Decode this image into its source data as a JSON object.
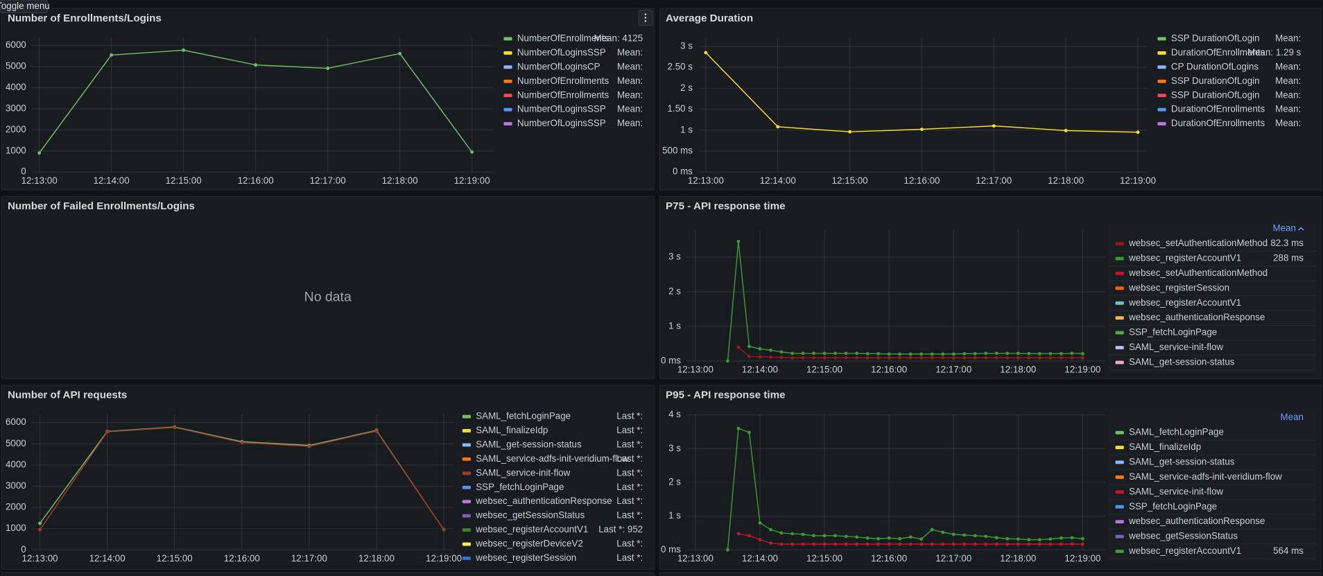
{
  "toggle_menu": "Toggle menu",
  "panels": [
    {
      "title": "Number of Enrollments/Logins",
      "chart": {
        "type": "line",
        "x": [
          "12:13:00",
          "12:14:00",
          "12:15:00",
          "12:16:00",
          "12:17:00",
          "12:18:00",
          "12:19:00"
        ],
        "xticks": [
          "12:13:00",
          "12:14:00",
          "12:15:00",
          "12:16:00",
          "12:17:00",
          "12:18:00",
          "12:19:00"
        ],
        "xlim": [
          "12:12:54",
          "12:19:18"
        ],
        "ylim": [
          0,
          6400
        ],
        "yticks": [
          0,
          1000,
          2000,
          3000,
          4000,
          5000,
          6000
        ],
        "grid": true,
        "legend": [
          {
            "name": "NumberOfEnrollments",
            "color": "#73bf69",
            "stat": "Mean: 4125",
            "values": [
              900,
              5550,
              5780,
              5080,
              4920,
              5620,
              950
            ]
          },
          {
            "name": "NumberOfLoginsSSP",
            "color": "#fade2a",
            "stat": "Mean:"
          },
          {
            "name": "NumberOfLoginsCP",
            "color": "#8ab8ff",
            "stat": "Mean:"
          },
          {
            "name": "NumberOfEnrollments",
            "color": "#ff780a",
            "stat": "Mean:"
          },
          {
            "name": "NumberOfEnrollments",
            "color": "#f2495c",
            "stat": "Mean:"
          },
          {
            "name": "NumberOfLoginsSSP",
            "color": "#5794f2",
            "stat": "Mean:"
          },
          {
            "name": "NumberOfLoginsSSP",
            "color": "#b877d9",
            "stat": "Mean:"
          }
        ]
      }
    },
    {
      "title": "Average Duration",
      "chart": {
        "type": "line",
        "x": [
          "12:13:00",
          "12:14:00",
          "12:15:00",
          "12:16:00",
          "12:17:00",
          "12:18:00",
          "12:19:00"
        ],
        "xticks": [
          "12:13:00",
          "12:14:00",
          "12:15:00",
          "12:16:00",
          "12:17:00",
          "12:18:00",
          "12:19:00"
        ],
        "xlim": [
          "12:12:54",
          "12:19:08"
        ],
        "ylim": [
          0,
          3.2
        ],
        "yticks": [
          {
            "value": 0,
            "label": "0 ms"
          },
          {
            "value": 0.5,
            "label": "500 ms"
          },
          {
            "value": 1,
            "label": "1 s"
          },
          {
            "value": 1.5,
            "label": "1.50 s"
          },
          {
            "value": 2,
            "label": "2 s"
          },
          {
            "value": 2.5,
            "label": "2.50 s"
          },
          {
            "value": 3,
            "label": "3 s"
          }
        ],
        "grid": true,
        "legend": [
          {
            "name": "SSP DurationOfLogin",
            "color": "#73bf69",
            "stat": "Mean:"
          },
          {
            "name": "DurationOfEnrollments",
            "color": "#fade2a",
            "stat": "Mean: 1.29 s",
            "values": [
              2.85,
              1.08,
              0.96,
              1.02,
              1.1,
              0.99,
              0.95
            ]
          },
          {
            "name": "CP DurationOfLogins",
            "color": "#8ab8ff",
            "stat": "Mean:"
          },
          {
            "name": "SSP DurationOfLogin",
            "color": "#ff780a",
            "stat": "Mean:"
          },
          {
            "name": "SSP DurationOfLogin",
            "color": "#f2495c",
            "stat": "Mean:"
          },
          {
            "name": "DurationOfEnrollments",
            "color": "#5794f2",
            "stat": "Mean:"
          },
          {
            "name": "DurationOfEnrollments",
            "color": "#b877d9",
            "stat": "Mean:"
          }
        ]
      }
    },
    {
      "title": "Number of Failed Enrollments/Logins",
      "message": "No data"
    },
    {
      "title": "P75 - API response time",
      "chart": {
        "type": "line",
        "x": [
          "12:13:30",
          "12:13:40",
          "12:13:50",
          "12:14:00",
          "12:14:10",
          "12:14:20",
          "12:14:30",
          "12:14:40",
          "12:14:50",
          "12:15:00",
          "12:15:10",
          "12:15:20",
          "12:15:30",
          "12:15:40",
          "12:15:50",
          "12:16:00",
          "12:16:10",
          "12:16:20",
          "12:16:30",
          "12:16:40",
          "12:16:50",
          "12:17:00",
          "12:17:10",
          "12:17:20",
          "12:17:30",
          "12:17:40",
          "12:17:50",
          "12:18:00",
          "12:18:10",
          "12:18:20",
          "12:18:30",
          "12:18:40",
          "12:18:50",
          "12:19:00"
        ],
        "xticks": [
          "12:13:00",
          "12:14:00",
          "12:15:00",
          "12:16:00",
          "12:17:00",
          "12:18:00",
          "12:19:00"
        ],
        "xlim": [
          "12:12:52",
          "12:19:21"
        ],
        "ylim": [
          0,
          3.8
        ],
        "yticks": [
          {
            "value": 0,
            "label": "0 ms"
          },
          {
            "value": 1,
            "label": "1 s"
          },
          {
            "value": 2,
            "label": "2 s"
          },
          {
            "value": 3,
            "label": "3 s"
          }
        ],
        "grid": true,
        "legend_header": "Mean",
        "legend": [
          {
            "name": "websec_setAuthenticationMethod",
            "color": "#9a1a1a",
            "stat": "82.3 ms",
            "values": [
              null,
              0.4,
              0.13,
              0.12,
              0.11,
              0.1,
              0.09,
              0.09,
              0.09,
              0.09,
              0.09,
              0.09,
              0.09,
              0.09,
              0.09,
              0.09,
              0.09,
              0.09,
              0.09,
              0.09,
              0.09,
              0.09,
              0.09,
              0.09,
              0.09,
              0.09,
              0.09,
              0.09,
              0.09,
              0.09,
              0.09,
              0.09,
              0.09,
              0.09
            ]
          },
          {
            "name": "websec_registerAccountV1",
            "color": "#3d9a35",
            "stat": "288 ms",
            "values": [
              0,
              3.45,
              0.42,
              0.35,
              0.31,
              0.26,
              0.22,
              0.22,
              0.22,
              0.22,
              0.22,
              0.22,
              0.22,
              0.21,
              0.21,
              0.2,
              0.2,
              0.2,
              0.2,
              0.2,
              0.2,
              0.2,
              0.21,
              0.21,
              0.22,
              0.22,
              0.22,
              0.22,
              0.21,
              0.21,
              0.21,
              0.21,
              0.22,
              0.21
            ]
          },
          {
            "name": "websec_setAuthenticationMethod",
            "color": "#c4162a"
          },
          {
            "name": "websec_registerSession",
            "color": "#fa6400"
          },
          {
            "name": "websec_registerAccountV1",
            "color": "#6cc4c4"
          },
          {
            "name": "websec_authenticationResponse",
            "color": "#ffb357"
          },
          {
            "name": "SSP_fetchLoginPage",
            "color": "#56a64b"
          },
          {
            "name": "SAML_service-init-flow",
            "color": "#c0b9f0"
          },
          {
            "name": "SAML_get-session-status",
            "color": "#f5a8d0"
          }
        ]
      }
    },
    {
      "title": "Number of API requests",
      "chart": {
        "type": "line",
        "x": [
          "12:13:00",
          "12:14:00",
          "12:15:00",
          "12:16:00",
          "12:17:00",
          "12:18:00",
          "12:19:00"
        ],
        "xticks": [
          "12:13:00",
          "12:14:00",
          "12:15:00",
          "12:16:00",
          "12:17:00",
          "12:18:00",
          "12:19:00"
        ],
        "xlim": [
          "12:12:53",
          "12:19:09"
        ],
        "ylim": [
          0,
          6400
        ],
        "yticks": [
          0,
          1000,
          2000,
          3000,
          4000,
          5000,
          6000
        ],
        "grid": true,
        "legend": [
          {
            "name": "SAML_fetchLoginPage",
            "color": "#73bf69",
            "stat": "Last *:",
            "values": [
              1250,
              5580,
              5790,
              5100,
              4920,
              5630,
              950
            ]
          },
          {
            "name": "SAML_finalizeIdp",
            "color": "#fade2a",
            "stat": "Last *:"
          },
          {
            "name": "SAML_get-session-status",
            "color": "#8ab8ff",
            "stat": "Last *:"
          },
          {
            "name": "SAML_service-adfs-init-veridium-flow",
            "color": "#ff780a",
            "stat": "Last *:"
          },
          {
            "name": "SAML_service-init-flow",
            "color": "#a33b2a",
            "stat": "Last *:",
            "values": [
              950,
              5560,
              5770,
              5060,
              4880,
              5600,
              952
            ]
          },
          {
            "name": "SSP_fetchLoginPage",
            "color": "#5794f2",
            "stat": "Last *:"
          },
          {
            "name": "websec_authenticationResponse",
            "color": "#b877d9",
            "stat": "Last *:"
          },
          {
            "name": "websec_getSessionStatus",
            "color": "#7c5fb8",
            "stat": "Last *:"
          },
          {
            "name": "websec_registerAccountV1",
            "color": "#37872d",
            "stat": "Last *: 952"
          },
          {
            "name": "websec_registerDeviceV2",
            "color": "#ffee52",
            "stat": "Last *:"
          },
          {
            "name": "websec_registerSession",
            "color": "#3274d9",
            "stat": "Last *:"
          }
        ]
      }
    },
    {
      "title": "P95 - API response time",
      "chart": {
        "type": "line",
        "x": [
          "12:13:30",
          "12:13:40",
          "12:13:50",
          "12:14:00",
          "12:14:10",
          "12:14:20",
          "12:14:30",
          "12:14:40",
          "12:14:50",
          "12:15:00",
          "12:15:10",
          "12:15:20",
          "12:15:30",
          "12:15:40",
          "12:15:50",
          "12:16:00",
          "12:16:10",
          "12:16:20",
          "12:16:30",
          "12:16:40",
          "12:16:50",
          "12:17:00",
          "12:17:10",
          "12:17:20",
          "12:17:30",
          "12:17:40",
          "12:17:50",
          "12:18:00",
          "12:18:10",
          "12:18:20",
          "12:18:30",
          "12:18:40",
          "12:18:50",
          "12:19:00"
        ],
        "xticks": [
          "12:13:00",
          "12:14:00",
          "12:15:00",
          "12:16:00",
          "12:17:00",
          "12:18:00",
          "12:19:00"
        ],
        "xlim": [
          "12:12:52",
          "12:19:21"
        ],
        "ylim": [
          0,
          4
        ],
        "yticks": [
          {
            "value": 0,
            "label": "0 ms"
          },
          {
            "value": 1,
            "label": "1 s"
          },
          {
            "value": 2,
            "label": "2 s"
          },
          {
            "value": 3,
            "label": "3 s"
          },
          {
            "value": 4,
            "label": "4 s"
          }
        ],
        "grid": true,
        "legend_header": "Mean",
        "legend": [
          {
            "name": "SAML_fetchLoginPage",
            "color": "#73bf69"
          },
          {
            "name": "SAML_finalizeIdp",
            "color": "#fade2a"
          },
          {
            "name": "SAML_get-session-status",
            "color": "#8ab8ff"
          },
          {
            "name": "SAML_service-adfs-init-veridium-flow",
            "color": "#ff780a"
          },
          {
            "name": "SAML_service-init-flow",
            "color": "#c4162a",
            "values": [
              null,
              0.48,
              0.42,
              0.3,
              0.2,
              0.17,
              0.17,
              0.17,
              0.17,
              0.17,
              0.17,
              0.17,
              0.17,
              0.17,
              0.17,
              0.17,
              0.17,
              0.17,
              0.17,
              0.17,
              0.17,
              0.17,
              0.17,
              0.17,
              0.17,
              0.17,
              0.17,
              0.17,
              0.17,
              0.17,
              0.17,
              0.17,
              0.17,
              0.17
            ]
          },
          {
            "name": "SSP_fetchLoginPage",
            "color": "#5794f2"
          },
          {
            "name": "websec_authenticationResponse",
            "color": "#b877d9"
          },
          {
            "name": "websec_getSessionStatus",
            "color": "#7c5fb8"
          },
          {
            "name": "websec_registerAccountV1",
            "color": "#3d9a35",
            "stat": "564 ms",
            "values": [
              0,
              3.6,
              3.48,
              0.8,
              0.6,
              0.5,
              0.48,
              0.46,
              0.42,
              0.42,
              0.42,
              0.4,
              0.38,
              0.35,
              0.33,
              0.35,
              0.33,
              0.38,
              0.32,
              0.6,
              0.52,
              0.46,
              0.44,
              0.42,
              0.4,
              0.36,
              0.33,
              0.32,
              0.3,
              0.3,
              0.32,
              0.35,
              0.36,
              0.33
            ]
          }
        ]
      }
    }
  ]
}
